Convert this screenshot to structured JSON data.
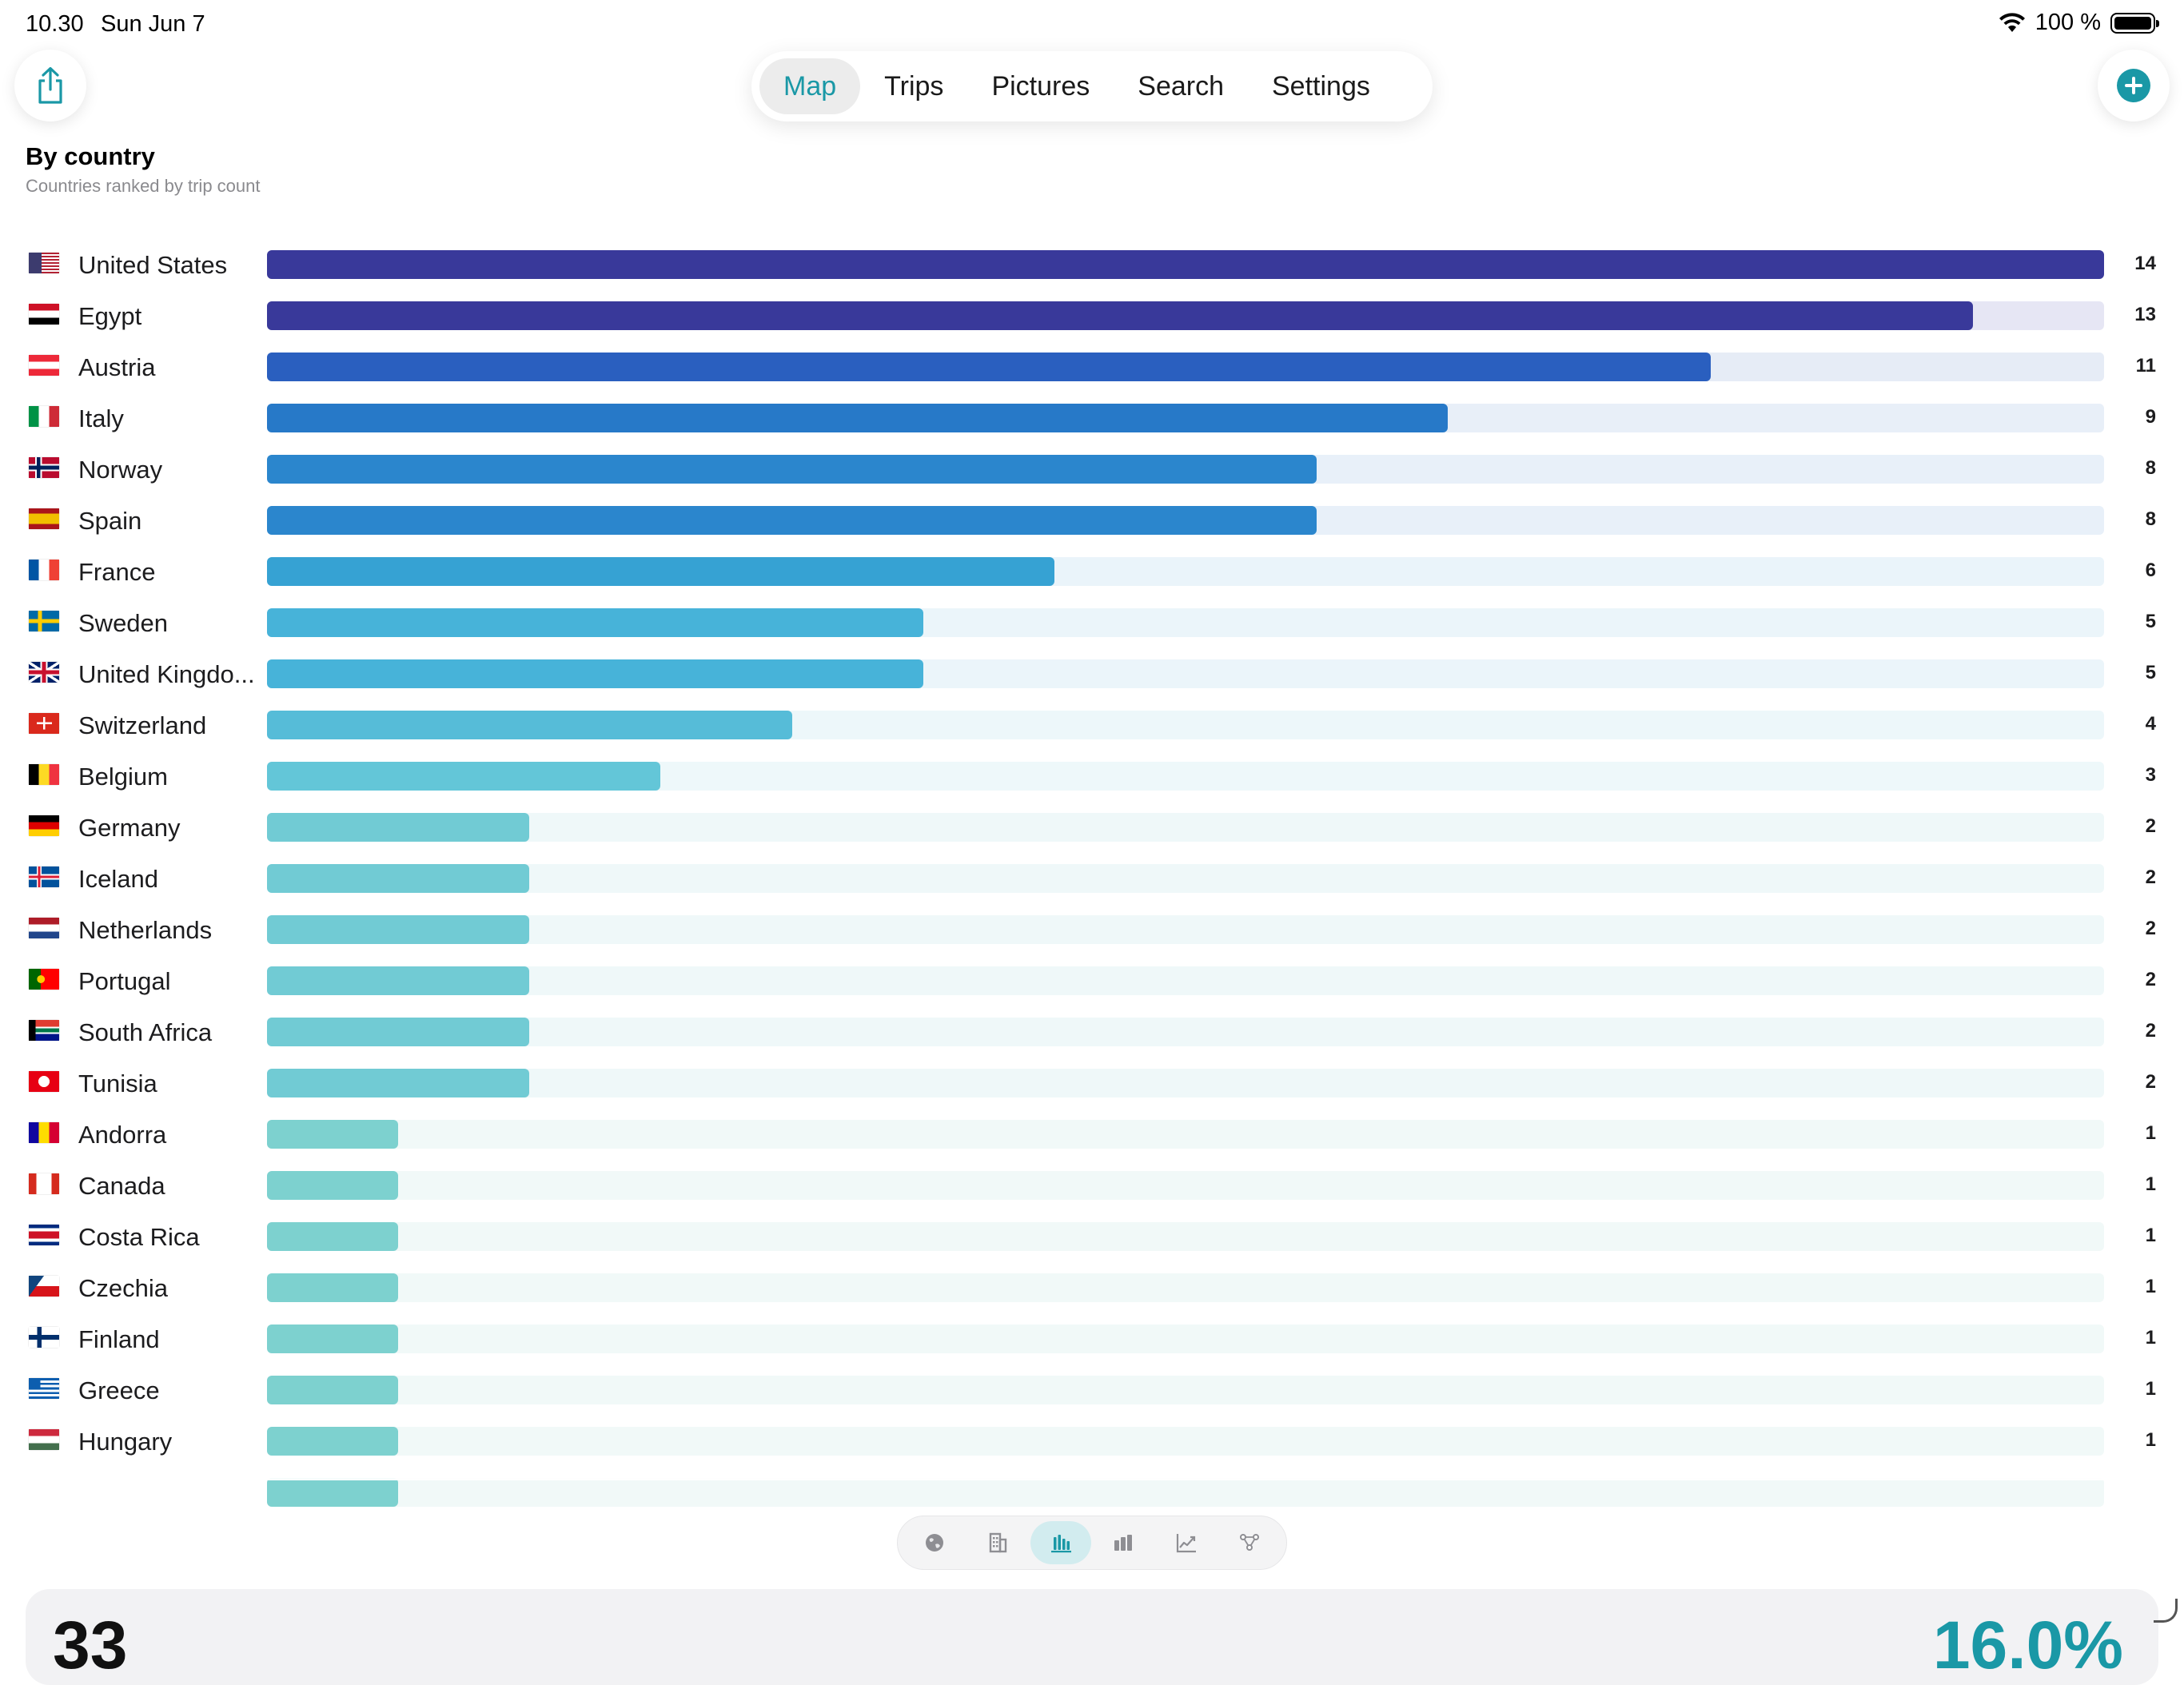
{
  "status": {
    "time": "10.30",
    "date": "Sun Jun 7",
    "battery": "100 %"
  },
  "nav": {
    "tabs": [
      {
        "label": "Map",
        "active": true
      },
      {
        "label": "Trips",
        "active": false
      },
      {
        "label": "Pictures",
        "active": false
      },
      {
        "label": "Search",
        "active": false
      },
      {
        "label": "Settings",
        "active": false
      }
    ]
  },
  "icons": {
    "share": "share-icon",
    "add": "plus-circle-icon",
    "wifi": "wifi-icon",
    "battery": "battery-icon"
  },
  "colors": {
    "accent": "#1a98a6"
  },
  "header": {
    "title": "By country",
    "subtitle": "Countries ranked by trip count"
  },
  "chart_data": {
    "type": "bar",
    "orientation": "horizontal",
    "title": "By country",
    "subtitle": "Countries ranked by trip count",
    "xlim": [
      0,
      14
    ],
    "categories": [
      "United States",
      "Egypt",
      "Austria",
      "Italy",
      "Norway",
      "Spain",
      "France",
      "Sweden",
      "United Kingdo...",
      "Switzerland",
      "Belgium",
      "Germany",
      "Iceland",
      "Netherlands",
      "Portugal",
      "South Africa",
      "Tunisia",
      "Andorra",
      "Canada",
      "Costa Rica",
      "Czechia",
      "Finland",
      "Greece",
      "Hungary"
    ],
    "values": [
      14,
      13,
      11,
      9,
      8,
      8,
      6,
      5,
      5,
      4,
      3,
      2,
      2,
      2,
      2,
      2,
      2,
      1,
      1,
      1,
      1,
      1,
      1,
      1
    ],
    "flags": [
      "us",
      "eg",
      "at",
      "it",
      "no",
      "es",
      "fr",
      "se",
      "gb",
      "ch",
      "be",
      "de",
      "is",
      "nl",
      "pt",
      "za",
      "tn",
      "ad",
      "ca",
      "cr",
      "cz",
      "fi",
      "gr",
      "hu"
    ],
    "colors": [
      "#39399a",
      "#39399a",
      "#2a5fbf",
      "#2779c8",
      "#2b86cd",
      "#2b86cd",
      "#36a2d3",
      "#47b3d9",
      "#47b3d9",
      "#56bcd8",
      "#63c6d8",
      "#71cbd4",
      "#71cbd4",
      "#71cbd4",
      "#71cbd4",
      "#71cbd4",
      "#71cbd4",
      "#7dd1cf",
      "#7dd1cf",
      "#7dd1cf",
      "#7dd1cf",
      "#7dd1cf",
      "#7dd1cf",
      "#7dd1cf"
    ],
    "track_colors": [
      "#e6e6f4",
      "#e6e6f4",
      "#e6ecf6",
      "#e8eff8",
      "#e8f0f9",
      "#e8f0f9",
      "#eaf4fa",
      "#ebf5fa",
      "#ebf5fa",
      "#edf7fa",
      "#eef8fa",
      "#eff8f9",
      "#eff8f9",
      "#eff8f9",
      "#eff8f9",
      "#eff8f9",
      "#eff8f9",
      "#f1f9f8",
      "#f1f9f8",
      "#f1f9f8",
      "#f1f9f8",
      "#f1f9f8",
      "#f1f9f8",
      "#f1f9f8"
    ]
  },
  "switcher": {
    "items": [
      {
        "icon": "globe-icon",
        "active": false
      },
      {
        "icon": "building-icon",
        "active": false
      },
      {
        "icon": "bar-chart-horizontal-icon",
        "active": true
      },
      {
        "icon": "bar-chart-icon",
        "active": false
      },
      {
        "icon": "line-chart-icon",
        "active": false
      },
      {
        "icon": "network-icon",
        "active": false
      }
    ]
  },
  "bottom_card": {
    "number": "33",
    "percent": "16.0%"
  }
}
